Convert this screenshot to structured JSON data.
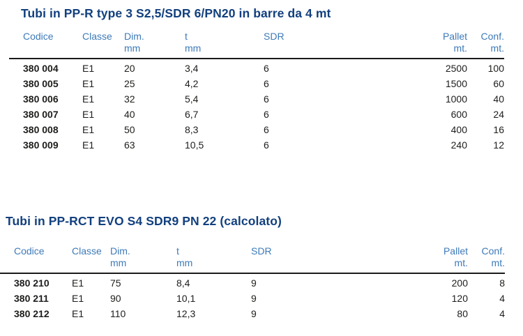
{
  "colors": {
    "title": "#12407e",
    "header_text": "#3d7ab8",
    "body_text": "#1d1d1b",
    "rule": "#1a1a1a",
    "background": "#ffffff"
  },
  "tables": [
    {
      "title": "Tubi in PP-R type 3 S2,5/SDR 6/PN20 in barre da 4 mt",
      "columns": [
        {
          "key": "codice",
          "label": "Codice",
          "unit": ""
        },
        {
          "key": "classe",
          "label": "Classe",
          "unit": ""
        },
        {
          "key": "dim",
          "label": "Dim.",
          "unit": "mm"
        },
        {
          "key": "t",
          "label": "t",
          "unit": "mm"
        },
        {
          "key": "sdr",
          "label": "SDR",
          "unit": ""
        },
        {
          "key": "pallet",
          "label": "Pallet",
          "unit": "mt."
        },
        {
          "key": "conf",
          "label": "Conf.",
          "unit": "mt."
        }
      ],
      "rows": [
        [
          "380 004",
          "E1",
          "20",
          "3,4",
          "6",
          "2500",
          "100"
        ],
        [
          "380 005",
          "E1",
          "25",
          "4,2",
          "6",
          "1500",
          "60"
        ],
        [
          "380 006",
          "E1",
          "32",
          "5,4",
          "6",
          "1000",
          "40"
        ],
        [
          "380 007",
          "E1",
          "40",
          "6,7",
          "6",
          "600",
          "24"
        ],
        [
          "380 008",
          "E1",
          "50",
          "8,3",
          "6",
          "400",
          "16"
        ],
        [
          "380 009",
          "E1",
          "63",
          "10,5",
          "6",
          "240",
          "12"
        ]
      ]
    },
    {
      "title": "Tubi in PP-RCT EVO S4 SDR9 PN 22 (calcolato)",
      "columns": [
        {
          "key": "codice",
          "label": "Codice",
          "unit": ""
        },
        {
          "key": "classe",
          "label": "Classe",
          "unit": ""
        },
        {
          "key": "dim",
          "label": "Dim.",
          "unit": "mm"
        },
        {
          "key": "t",
          "label": "t",
          "unit": "mm"
        },
        {
          "key": "sdr",
          "label": "SDR",
          "unit": ""
        },
        {
          "key": "pallet",
          "label": "Pallet",
          "unit": "mt."
        },
        {
          "key": "conf",
          "label": "Conf.",
          "unit": "mt."
        }
      ],
      "rows": [
        [
          "380 210",
          "E1",
          "75",
          "8,4",
          "9",
          "200",
          "8"
        ],
        [
          "380 211",
          "E1",
          "90",
          "10,1",
          "9",
          "120",
          "4"
        ],
        [
          "380 212",
          "E1",
          "110",
          "12,3",
          "9",
          "80",
          "4"
        ]
      ]
    }
  ]
}
